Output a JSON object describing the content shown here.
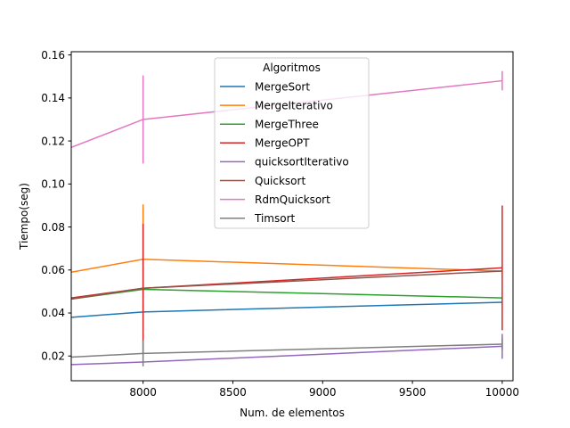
{
  "chart_data": {
    "type": "line",
    "xlabel": "Num. de elementos",
    "ylabel": "Tiempo(seg)",
    "xlim": [
      7600,
      10060
    ],
    "ylim": [
      0.0085,
      0.1615
    ],
    "xticks": [
      8000,
      8500,
      9000,
      9500,
      10000
    ],
    "xtick_labels": [
      "8000",
      "8500",
      "9000",
      "9500",
      "10000"
    ],
    "yticks": [
      0.02,
      0.04,
      0.06,
      0.08,
      0.1,
      0.12,
      0.14,
      0.16
    ],
    "ytick_labels": [
      "0.02",
      "0.04",
      "0.06",
      "0.08",
      "0.10",
      "0.12",
      "0.14",
      "0.16"
    ],
    "grid": false,
    "legend_title": "Algoritmos",
    "legend_position": "top-center",
    "x": [
      7600,
      8000,
      10000
    ],
    "series": [
      {
        "name": "MergeSort",
        "color": "#1f77b4",
        "values": [
          0.038,
          0.0405,
          0.045
        ],
        "err": [
          0,
          0,
          0
        ]
      },
      {
        "name": "MergeIterativo",
        "color": "#ff7f0e",
        "values": [
          0.059,
          0.065,
          0.0595
        ],
        "err": [
          0,
          0.0255,
          0
        ]
      },
      {
        "name": "MergeThree",
        "color": "#2ca02c",
        "values": [
          0.0465,
          0.051,
          0.047
        ],
        "err": [
          0,
          0,
          0
        ]
      },
      {
        "name": "MergeOPT",
        "color": "#d62728",
        "values": [
          0.047,
          0.0515,
          0.061
        ],
        "err": [
          0,
          0.03,
          0.029
        ]
      },
      {
        "name": "quicksortIterativo",
        "color": "#9467bd",
        "values": [
          0.016,
          0.0172,
          0.0245
        ],
        "err": [
          0,
          0,
          0.0058
        ]
      },
      {
        "name": "Quicksort",
        "color": "#8c564b",
        "values": [
          0.0465,
          0.0515,
          0.0595
        ],
        "err": [
          0,
          0,
          0
        ]
      },
      {
        "name": "RdmQuicksort",
        "color": "#e377c2",
        "values": [
          0.117,
          0.13,
          0.148
        ],
        "err": [
          0,
          0.0205,
          0.0045
        ]
      },
      {
        "name": "Timsort",
        "color": "#7f7f7f",
        "values": [
          0.0195,
          0.0212,
          0.0255
        ],
        "err": [
          0,
          0.006,
          0.0028
        ]
      }
    ]
  }
}
